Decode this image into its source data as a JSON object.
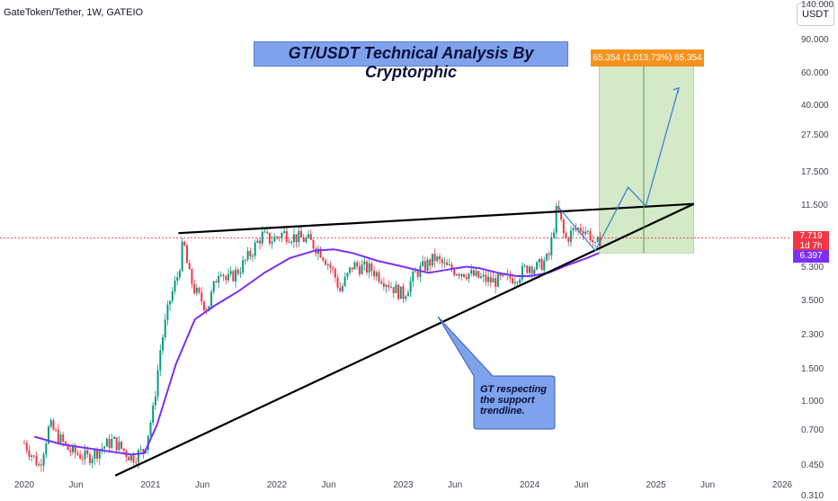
{
  "chart_data": {
    "type": "candlestick",
    "symbol_header": "GateToken/Tether, 1W, GATEIO",
    "title": "GT/USDT Technical Analysis By Cryptorphic",
    "yaxis": {
      "unit_label": "USDT",
      "scale": "log",
      "tick_labels": [
        "140.000",
        "90.000",
        "60.000",
        "40.000",
        "27.500",
        "17.500",
        "11.500",
        "7.719",
        "5.300",
        "3.500",
        "2.300",
        "1.500",
        "1.000",
        "0.700",
        "0.450",
        "0.310"
      ],
      "tick_values": [
        140,
        90,
        60,
        40,
        27.5,
        17.5,
        11.5,
        7.719,
        5.3,
        3.5,
        2.3,
        1.5,
        1.0,
        0.7,
        0.45,
        0.31
      ]
    },
    "xaxis": {
      "tick_labels": [
        "2020",
        "Jun",
        "2021",
        "Jun",
        "2022",
        "Jun",
        "2023",
        "Jun",
        "2024",
        "Jun",
        "2025",
        "Jun",
        "2026"
      ]
    },
    "price_line": {
      "value": "7.719",
      "countdown": "1d 7h",
      "color": "#f23645"
    },
    "moving_average": {
      "value": "6.397",
      "color": "#7b2ff7",
      "points": [
        [
          2020.08,
          0.65
        ],
        [
          2020.3,
          0.59
        ],
        [
          2020.6,
          0.55
        ],
        [
          2020.85,
          0.52
        ],
        [
          2020.95,
          0.53
        ],
        [
          2021.05,
          0.75
        ],
        [
          2021.2,
          1.6
        ],
        [
          2021.35,
          2.8
        ],
        [
          2021.5,
          3.3
        ],
        [
          2021.7,
          4.0
        ],
        [
          2021.9,
          5.0
        ],
        [
          2022.1,
          6.0
        ],
        [
          2022.3,
          6.6
        ],
        [
          2022.45,
          6.7
        ],
        [
          2022.6,
          6.4
        ],
        [
          2022.8,
          5.8
        ],
        [
          2023.0,
          5.4
        ],
        [
          2023.2,
          5.0
        ],
        [
          2023.35,
          5.2
        ],
        [
          2023.5,
          5.4
        ],
        [
          2023.6,
          5.3
        ],
        [
          2023.75,
          5.0
        ],
        [
          2023.9,
          4.8
        ],
        [
          2024.0,
          4.8
        ],
        [
          2024.15,
          5.0
        ],
        [
          2024.3,
          5.5
        ],
        [
          2024.45,
          6.0
        ],
        [
          2024.55,
          6.4
        ]
      ]
    },
    "price_path": [
      [
        2020.0,
        0.6
      ],
      [
        2020.12,
        0.45
      ],
      [
        2020.2,
        0.75
      ],
      [
        2020.35,
        0.55
      ],
      [
        2020.5,
        0.5
      ],
      [
        2020.7,
        0.62
      ],
      [
        2020.85,
        0.5
      ],
      [
        2020.95,
        0.55
      ],
      [
        2021.02,
        0.9
      ],
      [
        2021.08,
        2.0
      ],
      [
        2021.15,
        3.5
      ],
      [
        2021.22,
        5.0
      ],
      [
        2021.26,
        7.5
      ],
      [
        2021.3,
        5.0
      ],
      [
        2021.35,
        4.0
      ],
      [
        2021.45,
        3.2
      ],
      [
        2021.55,
        5.5
      ],
      [
        2021.6,
        4.5
      ],
      [
        2021.7,
        5.2
      ],
      [
        2021.8,
        6.5
      ],
      [
        2021.88,
        8.0
      ],
      [
        2021.95,
        7.5
      ],
      [
        2022.05,
        8.2
      ],
      [
        2022.15,
        7.8
      ],
      [
        2022.25,
        7.5
      ],
      [
        2022.35,
        6.5
      ],
      [
        2022.45,
        5.0
      ],
      [
        2022.5,
        4.0
      ],
      [
        2022.6,
        5.5
      ],
      [
        2022.75,
        5.2
      ],
      [
        2022.85,
        4.6
      ],
      [
        2022.95,
        4.0
      ],
      [
        2023.0,
        3.8
      ],
      [
        2023.1,
        5.0
      ],
      [
        2023.25,
        6.0
      ],
      [
        2023.35,
        5.3
      ],
      [
        2023.5,
        5.0
      ],
      [
        2023.6,
        4.7
      ],
      [
        2023.7,
        4.5
      ],
      [
        2023.8,
        4.6
      ],
      [
        2023.9,
        4.8
      ],
      [
        2024.0,
        5.5
      ],
      [
        2024.05,
        5.3
      ],
      [
        2024.15,
        6.0
      ],
      [
        2024.22,
        11.5
      ],
      [
        2024.28,
        7.5
      ],
      [
        2024.35,
        8.5
      ],
      [
        2024.42,
        8.8
      ],
      [
        2024.48,
        8.0
      ],
      [
        2024.52,
        6.8
      ],
      [
        2024.56,
        7.7
      ]
    ],
    "resistance_trendline": [
      [
        2021.22,
        8.2
      ],
      [
        2025.3,
        11.8
      ]
    ],
    "support_trendline": [
      [
        2020.72,
        0.4
      ],
      [
        2025.3,
        11.8
      ]
    ],
    "projection_path": [
      [
        2024.22,
        11.5
      ],
      [
        2024.52,
        6.6
      ],
      [
        2024.78,
        14.5
      ],
      [
        2024.92,
        11.5
      ],
      [
        2025.18,
        50
      ]
    ],
    "target_zone": {
      "entry": 6.4,
      "top": 71.5,
      "x_start": 2024.55,
      "x_end": 2025.3
    },
    "target_label": "65.354 (1,013.73%) 65,354",
    "annotation": "GT respecting the support trendline."
  }
}
